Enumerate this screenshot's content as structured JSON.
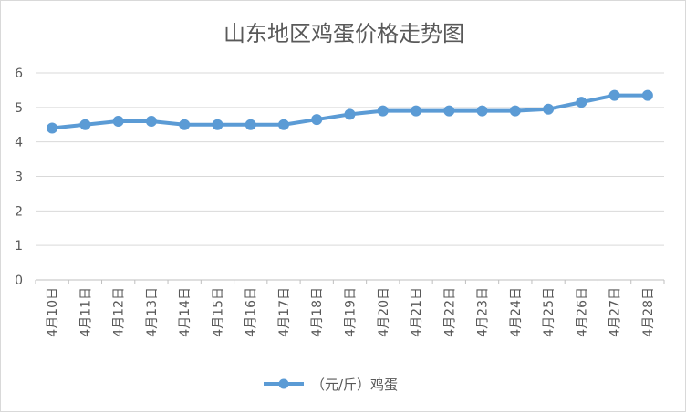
{
  "chart_data": {
    "type": "line",
    "title": "山东地区鸡蛋价格走势图",
    "categories": [
      "4月10日",
      "4月11日",
      "4月12日",
      "4月13日",
      "4月14日",
      "4月15日",
      "4月16日",
      "4月17日",
      "4月18日",
      "4月19日",
      "4月20日",
      "4月21日",
      "4月22日",
      "4月23日",
      "4月24日",
      "4月25日",
      "4月26日",
      "4月27日",
      "4月28日"
    ],
    "series": [
      {
        "name": "（元/斤）鸡蛋",
        "values": [
          4.4,
          4.5,
          4.6,
          4.6,
          4.5,
          4.5,
          4.5,
          4.5,
          4.65,
          4.8,
          4.9,
          4.9,
          4.9,
          4.9,
          4.9,
          4.95,
          5.15,
          5.35,
          5.35
        ],
        "color": "#5b9bd5"
      }
    ],
    "ylim": [
      0,
      6
    ],
    "yticks": [
      "0",
      "1",
      "2",
      "3",
      "4",
      "5",
      "6"
    ],
    "grid": true,
    "legend_position": "bottom"
  }
}
